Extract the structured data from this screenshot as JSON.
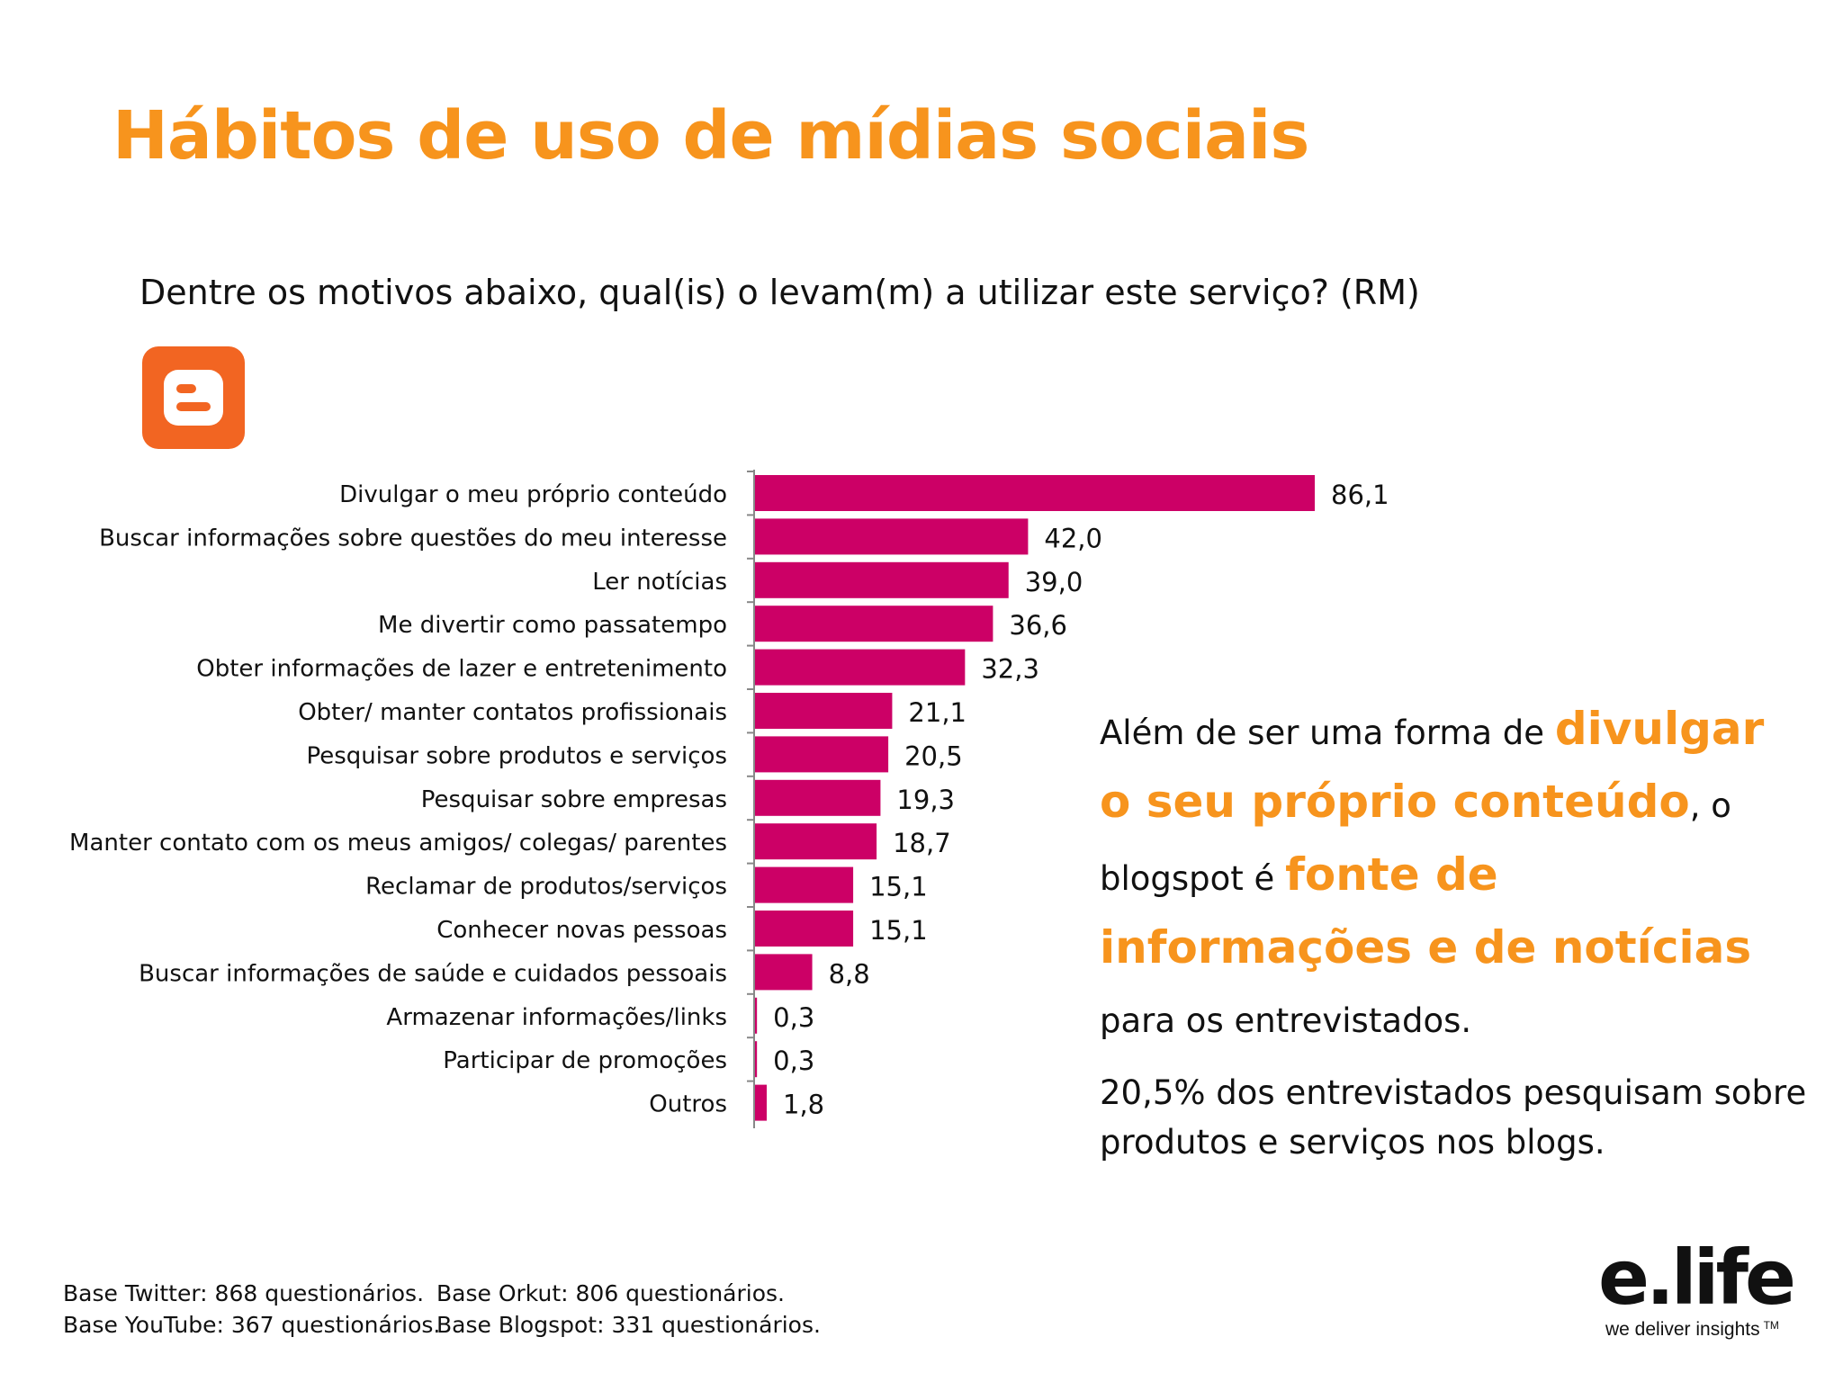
{
  "title": "Hábitos de uso de mídias sociais",
  "question": "Dentre os motivos abaixo, qual(is) o levam(m) a utilizar este serviço? (RM)",
  "logo_icon": "blogger-icon",
  "colors": {
    "accent": "#f7941d",
    "bar": "#cc0066",
    "logo": "#f26522"
  },
  "chart_data": {
    "type": "bar",
    "orientation": "horizontal",
    "categories": [
      "Divulgar o meu próprio conteúdo",
      "Buscar informações sobre questões do meu interesse",
      "Ler notícias",
      "Me divertir como passatempo",
      "Obter informações de lazer e entretenimento",
      "Obter/ manter contatos profissionais",
      "Pesquisar sobre produtos e serviços",
      "Pesquisar sobre empresas",
      "Manter contato com os meus amigos/ colegas/ parentes",
      "Reclamar de produtos/serviços",
      "Conhecer novas pessoas",
      "Buscar informações de saúde e cuidados pessoais",
      "Armazenar informações/links",
      "Participar de promoções",
      "Outros"
    ],
    "values": [
      86.1,
      42.0,
      39.0,
      36.6,
      32.3,
      21.1,
      20.5,
      19.3,
      18.7,
      15.1,
      15.1,
      8.8,
      0.3,
      0.3,
      1.8
    ],
    "value_labels": [
      "86,1",
      "42,0",
      "39,0",
      "36,6",
      "32,3",
      "21,1",
      "20,5",
      "19,3",
      "18,7",
      "15,1",
      "15,1",
      "8,8",
      "0,3",
      "0,3",
      "1,8"
    ],
    "xlim": [
      0,
      100
    ],
    "grid": false,
    "legend": "none"
  },
  "callout": {
    "p1_a": "Além de ser  uma forma de ",
    "p1_hl1": "divulgar o seu próprio conteúdo",
    "p1_b": ", o blogspot é ",
    "p1_hl2": "fonte de informações e de notícias",
    "p1_c": " para os entrevistados.",
    "p2": "20,5% dos entrevistados pesquisam sobre produtos e serviços nos blogs."
  },
  "footer": {
    "twitter": "Base Twitter: 868 questionários.",
    "orkut": "Base Orkut: 806 questionários.",
    "youtube": "Base YouTube: 367 questionários.",
    "blogspot": "Base Blogspot: 331 questionários."
  },
  "brand": {
    "wordmark": "e.life",
    "tagline": "we deliver insights",
    "tm": "TM"
  }
}
